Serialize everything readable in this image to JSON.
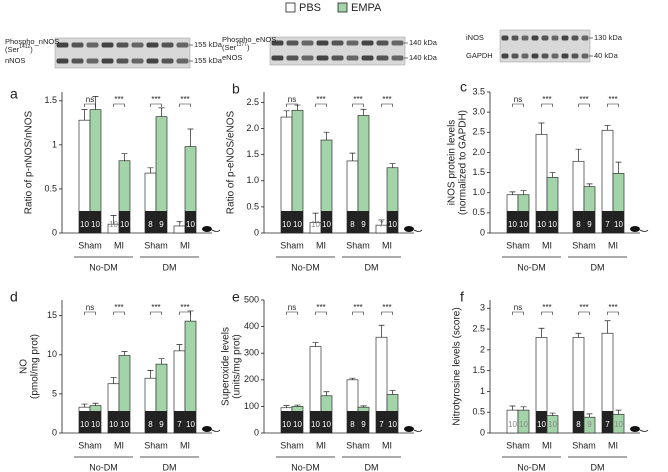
{
  "legend_position": "top",
  "blots": [
    {
      "label": "Phospho_nNOS",
      "site_prefix": "(Ser",
      "site": "1412",
      "site_suffix": ")",
      "total": "nNOS",
      "markers": [
        "155 kDa",
        "155 kDa"
      ]
    },
    {
      "label": "Phospho_eNOS",
      "site_prefix": "(Ser",
      "site": "1177",
      "site_suffix": ")",
      "total": "eNOS",
      "markers": [
        "140 kDa",
        "140 kDa"
      ]
    },
    {
      "label": "iNOS",
      "total": "GAPDH",
      "markers": [
        "130 kDa",
        "40 kDa"
      ]
    }
  ],
  "chart_data": [
    {
      "type": "bar",
      "panel": "a",
      "y_label": [
        "Ratio of p-nNOS/nNOS"
      ],
      "categories": [
        "Sham",
        "MI",
        "Sham",
        "MI"
      ],
      "groups": [
        "No-DM",
        "DM"
      ],
      "ylim": [
        0,
        1.6
      ],
      "yticks": [
        0,
        0.5,
        1,
        1.5
      ],
      "significance": [
        "ns",
        "***",
        "***",
        "***"
      ],
      "series": [
        {
          "name": "PBS",
          "color": "#ffffff",
          "values": [
            1.28,
            0.1,
            0.68,
            0.08
          ],
          "errors": [
            0.12,
            0.1,
            0.06,
            0.05
          ],
          "n": [
            10,
            10,
            8,
            7
          ]
        },
        {
          "name": "EMPA",
          "color": "#a3d4a9",
          "values": [
            1.4,
            0.82,
            1.32,
            0.98
          ],
          "errors": [
            0.15,
            0.08,
            0.1,
            0.2
          ],
          "n": [
            10,
            10,
            9,
            10
          ]
        }
      ]
    },
    {
      "type": "bar",
      "panel": "b",
      "y_label": [
        "Ratio of p-eNOS/eNOS"
      ],
      "categories": [
        "Sham",
        "MI",
        "Sham",
        "MI"
      ],
      "groups": [
        "No-DM",
        "DM"
      ],
      "ylim": [
        0,
        2.7
      ],
      "yticks": [
        0,
        0.5,
        {
          "value": 1,
          "label": "1.0"
        },
        1.5,
        {
          "value": 2,
          "label": "2.0"
        },
        2.5
      ],
      "significance": [
        "ns",
        "***",
        "***",
        "***"
      ],
      "series": [
        {
          "name": "PBS",
          "color": "#ffffff",
          "values": [
            2.22,
            0.2,
            1.38,
            0.15
          ],
          "errors": [
            0.12,
            0.18,
            0.15,
            0.1
          ],
          "n": [
            10,
            10,
            8,
            7
          ]
        },
        {
          "name": "EMPA",
          "color": "#a3d4a9",
          "values": [
            2.35,
            1.78,
            2.25,
            1.25
          ],
          "errors": [
            0.1,
            0.15,
            0.12,
            0.08
          ],
          "n": [
            10,
            10,
            9,
            10
          ]
        }
      ]
    },
    {
      "type": "bar",
      "panel": "c",
      "y_label": [
        "iNOS protein levels",
        "(normalized to GAPDH)"
      ],
      "categories": [
        "Sham",
        "MI",
        "Sham",
        "MI"
      ],
      "groups": [
        "No-DM",
        "DM"
      ],
      "ylim": [
        0,
        3.5
      ],
      "yticks": [
        0,
        0.5,
        {
          "value": 1,
          "label": "1.0"
        },
        1.5,
        {
          "value": 2,
          "label": "2.0"
        },
        2.5,
        {
          "value": 3,
          "label": "3.0"
        },
        3.5
      ],
      "significance": [
        "ns",
        "***",
        "***",
        "***"
      ],
      "series": [
        {
          "name": "PBS",
          "color": "#ffffff",
          "values": [
            0.95,
            2.45,
            1.78,
            2.55
          ],
          "errors": [
            0.07,
            0.28,
            0.3,
            0.12
          ],
          "n": [
            10,
            10,
            8,
            7
          ]
        },
        {
          "name": "EMPA",
          "color": "#a3d4a9",
          "values": [
            0.95,
            1.38,
            1.15,
            1.48
          ],
          "errors": [
            0.1,
            0.12,
            0.07,
            0.28
          ],
          "n": [
            10,
            10,
            9,
            10
          ]
        }
      ]
    },
    {
      "type": "bar",
      "panel": "d",
      "y_label": [
        "NO",
        "(pmol/mg prot)"
      ],
      "categories": [
        "Sham",
        "MI",
        "Sham",
        "MI"
      ],
      "groups": [
        "No-DM",
        "DM"
      ],
      "ylim": [
        0,
        17
      ],
      "yticks": [
        0,
        5,
        10,
        15
      ],
      "significance": [
        "ns",
        "***",
        "***",
        "***"
      ],
      "series": [
        {
          "name": "PBS",
          "color": "#ffffff",
          "values": [
            3.3,
            6.3,
            7.0,
            10.5
          ],
          "errors": [
            0.4,
            0.8,
            1.0,
            0.8
          ],
          "n": [
            10,
            10,
            8,
            7
          ]
        },
        {
          "name": "EMPA",
          "color": "#a3d4a9",
          "values": [
            3.5,
            9.9,
            8.8,
            14.3
          ],
          "errors": [
            0.3,
            0.5,
            0.7,
            1.3
          ],
          "n": [
            10,
            10,
            9,
            10
          ]
        }
      ]
    },
    {
      "type": "bar",
      "panel": "e",
      "y_label": [
        "Superoxide levels",
        "(units/mg prot)"
      ],
      "categories": [
        "Sham",
        "MI",
        "Sham",
        "MI"
      ],
      "groups": [
        "No-DM",
        "DM"
      ],
      "ylim": [
        0,
        500
      ],
      "yticks": [
        0,
        100,
        200,
        300,
        400,
        500
      ],
      "significance": [
        "ns",
        "***",
        "***",
        "***"
      ],
      "series": [
        {
          "name": "PBS",
          "color": "#ffffff",
          "values": [
            95,
            325,
            200,
            360
          ],
          "errors": [
            8,
            15,
            6,
            45
          ],
          "n": [
            10,
            10,
            8,
            7
          ]
        },
        {
          "name": "EMPA",
          "color": "#a3d4a9",
          "values": [
            100,
            140,
            97,
            145
          ],
          "errors": [
            5,
            15,
            5,
            15
          ],
          "n": [
            10,
            10,
            9,
            10
          ]
        }
      ]
    },
    {
      "type": "bar",
      "panel": "f",
      "y_label": [
        "Nitrotyrosine levels (score)"
      ],
      "categories": [
        "Sham",
        "MI",
        "Sham",
        "MI"
      ],
      "groups": [
        "No-DM",
        "DM"
      ],
      "ylim": [
        0,
        3.2
      ],
      "yticks": [
        0,
        0.5,
        1,
        1.5,
        2,
        2.5,
        3
      ],
      "significance": [
        "ns",
        "***",
        "***",
        "***"
      ],
      "series": [
        {
          "name": "PBS",
          "color": "#ffffff",
          "values": [
            0.55,
            2.3,
            2.3,
            2.4
          ],
          "errors": [
            0.1,
            0.22,
            0.1,
            0.3
          ],
          "n": [
            10,
            10,
            8,
            7
          ]
        },
        {
          "name": "EMPA",
          "color": "#a3d4a9",
          "values": [
            0.55,
            0.42,
            0.38,
            0.45
          ],
          "errors": [
            0.08,
            0.06,
            0.08,
            0.1
          ],
          "n": [
            10,
            10,
            9,
            10
          ]
        }
      ]
    }
  ]
}
